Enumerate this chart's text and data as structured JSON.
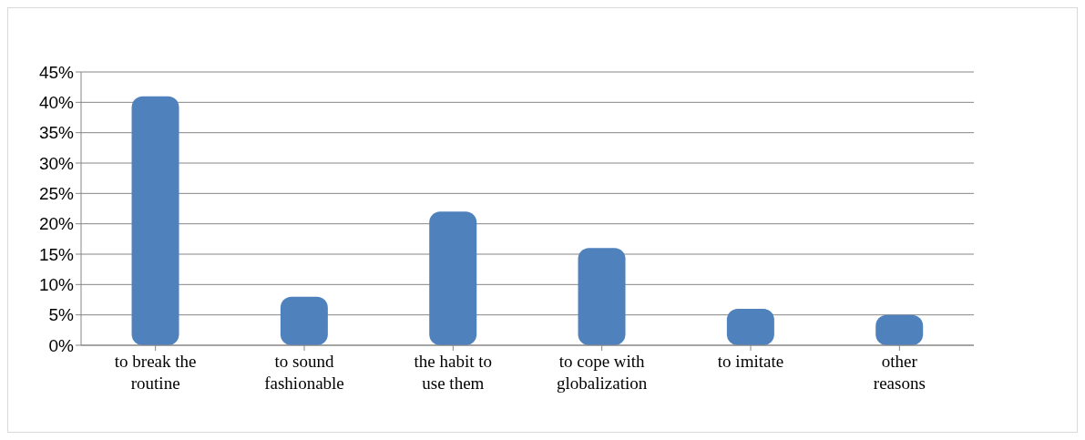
{
  "chart_data": {
    "type": "bar",
    "categories": [
      "to break the routine",
      "to sound fashionable",
      "the habit to use them",
      "to cope with globalization",
      "to imitate",
      "other reasons"
    ],
    "values": [
      41,
      8,
      22,
      16,
      6,
      5
    ],
    "color": "#4f81bd",
    "ylim": [
      0,
      45
    ],
    "yticks": [
      {
        "value": 0,
        "label": "0%"
      },
      {
        "value": 5,
        "label": "5%"
      },
      {
        "value": 10,
        "label": "10%"
      },
      {
        "value": 15,
        "label": "15%"
      },
      {
        "value": 20,
        "label": "20%"
      },
      {
        "value": 25,
        "label": "25%"
      },
      {
        "value": 30,
        "label": "30%"
      },
      {
        "value": 35,
        "label": "35%"
      },
      {
        "value": 40,
        "label": "40%"
      },
      {
        "value": 45,
        "label": "45%"
      }
    ],
    "grid": "y"
  }
}
